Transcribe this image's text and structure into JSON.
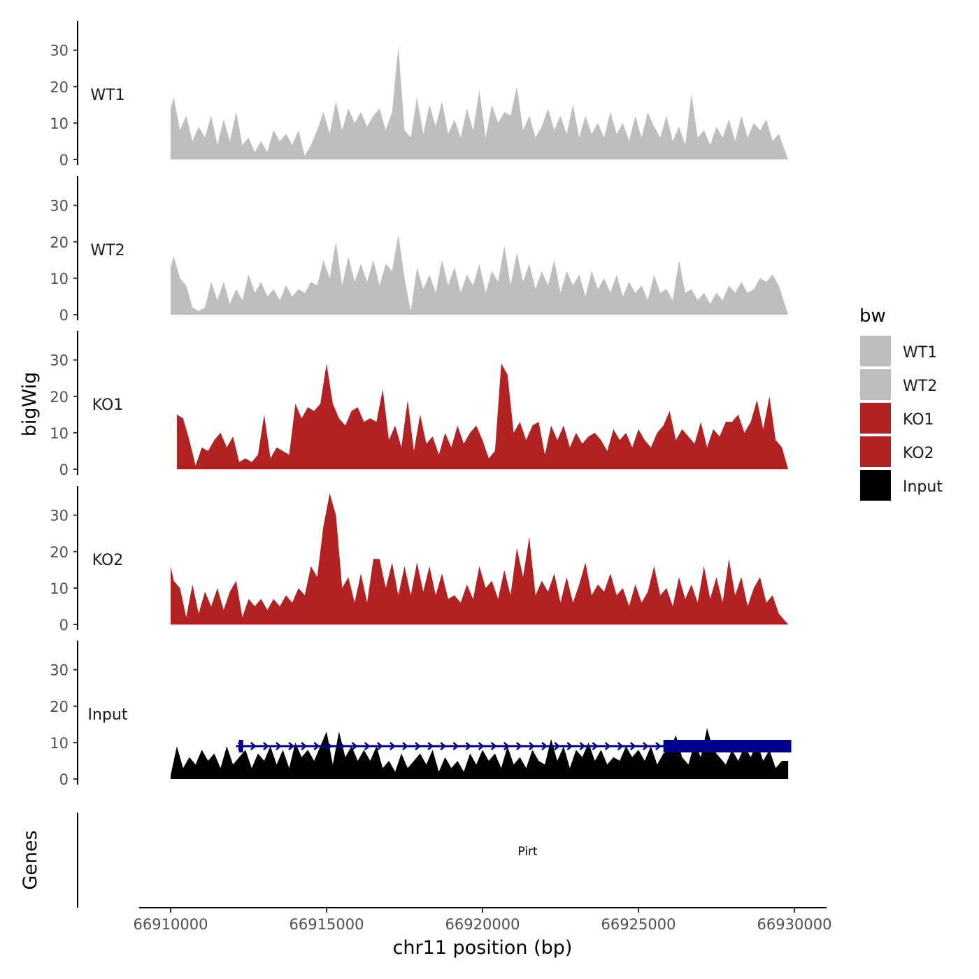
{
  "chart_data": {
    "type": "area",
    "title": "",
    "ylabel": "bigWig",
    "xlabel": "chr11 position (bp)",
    "xlim": [
      66910000,
      66930000
    ],
    "ylim": [
      0,
      37
    ],
    "x_ticks": [
      66910000,
      66915000,
      66920000,
      66925000,
      66930000
    ],
    "x_tick_labels": [
      "66910000",
      "66915000",
      "66920000",
      "66925000",
      "66930000"
    ],
    "y_ticks": [
      0,
      10,
      20,
      30
    ],
    "y_tick_labels": [
      "0",
      "10",
      "20",
      "30"
    ],
    "legend": {
      "title": "bw",
      "position": "right",
      "entries": [
        {
          "label": "WT1",
          "color": "#bebebe"
        },
        {
          "label": "WT2",
          "color": "#bebebe"
        },
        {
          "label": "KO1",
          "color": "#b22222"
        },
        {
          "label": "KO2",
          "color": "#b22222"
        },
        {
          "label": "Input",
          "color": "#000000"
        }
      ]
    },
    "series": [
      {
        "name": "WT1",
        "color": "#bebebe",
        "x": [
          66910000,
          66910100,
          66910300,
          66910500,
          66910700,
          66910900,
          66911100,
          66911300,
          66911500,
          66911700,
          66911900,
          66912100,
          66912300,
          66912500,
          66912700,
          66912900,
          66913100,
          66913300,
          66913500,
          66913700,
          66913900,
          66914100,
          66914300,
          66914500,
          66914700,
          66914900,
          66915100,
          66915300,
          66915500,
          66915700,
          66915900,
          66916100,
          66916300,
          66916500,
          66916700,
          66916900,
          66917100,
          66917300,
          66917500,
          66917700,
          66917900,
          66918100,
          66918300,
          66918500,
          66918700,
          66918900,
          66919100,
          66919300,
          66919500,
          66919700,
          66919900,
          66920100,
          66920300,
          66920500,
          66920700,
          66920900,
          66921100,
          66921300,
          66921500,
          66921700,
          66921900,
          66922100,
          66922300,
          66922500,
          66922700,
          66922900,
          66923100,
          66923300,
          66923500,
          66923700,
          66923900,
          66924100,
          66924300,
          66924500,
          66924700,
          66924900,
          66925100,
          66925300,
          66925500,
          66925700,
          66925900,
          66926100,
          66926300,
          66926500,
          66926700,
          66926900,
          66927100,
          66927300,
          66927500,
          66927700,
          66927900,
          66928100,
          66928300,
          66928500,
          66928700,
          66928900,
          66929100,
          66929300,
          66929500,
          66929800
        ],
        "values": [
          14,
          17,
          8,
          12,
          5,
          9,
          6,
          12,
          4,
          11,
          5,
          13,
          4,
          6,
          2,
          5,
          2,
          8,
          5,
          7,
          4,
          8,
          1,
          4,
          8,
          13,
          7,
          16,
          8,
          14,
          10,
          13,
          9,
          12,
          14,
          8,
          13,
          31,
          8,
          6,
          17,
          7,
          15,
          9,
          16,
          7,
          11,
          6,
          14,
          8,
          19,
          6,
          15,
          10,
          13,
          12,
          20,
          8,
          12,
          6,
          9,
          14,
          8,
          12,
          7,
          15,
          6,
          12,
          7,
          10,
          6,
          13,
          7,
          10,
          5,
          12,
          6,
          13,
          9,
          6,
          12,
          5,
          9,
          4,
          18,
          6,
          8,
          4,
          9,
          6,
          11,
          5,
          12,
          6,
          10,
          8,
          11,
          5,
          7,
          0
        ]
      },
      {
        "name": "WT2",
        "color": "#bebebe",
        "x": [
          66910000,
          66910100,
          66910300,
          66910500,
          66910700,
          66910900,
          66911100,
          66911300,
          66911500,
          66911700,
          66911900,
          66912100,
          66912300,
          66912500,
          66912700,
          66912900,
          66913100,
          66913300,
          66913500,
          66913700,
          66913900,
          66914100,
          66914300,
          66914500,
          66914700,
          66914900,
          66915100,
          66915300,
          66915500,
          66915700,
          66915900,
          66916100,
          66916300,
          66916500,
          66916700,
          66916900,
          66917100,
          66917300,
          66917500,
          66917700,
          66917900,
          66918100,
          66918300,
          66918500,
          66918700,
          66918900,
          66919100,
          66919300,
          66919500,
          66919700,
          66919900,
          66920100,
          66920300,
          66920500,
          66920700,
          66920900,
          66921100,
          66921300,
          66921500,
          66921700,
          66921900,
          66922100,
          66922300,
          66922500,
          66922700,
          66922900,
          66923100,
          66923300,
          66923500,
          66923700,
          66923900,
          66924100,
          66924300,
          66924500,
          66924700,
          66924900,
          66925100,
          66925300,
          66925500,
          66925700,
          66925900,
          66926100,
          66926300,
          66926500,
          66926700,
          66926900,
          66927100,
          66927300,
          66927500,
          66927700,
          66927900,
          66928100,
          66928300,
          66928500,
          66928700,
          66928900,
          66929100,
          66929300,
          66929500,
          66929800
        ],
        "values": [
          13,
          16,
          10,
          8,
          2,
          1,
          2,
          9,
          4,
          9,
          3,
          7,
          4,
          11,
          6,
          9,
          5,
          7,
          4,
          8,
          5,
          7,
          6,
          9,
          8,
          15,
          10,
          20,
          8,
          16,
          9,
          14,
          9,
          15,
          8,
          14,
          12,
          22,
          10,
          1,
          13,
          7,
          11,
          6,
          15,
          8,
          13,
          6,
          11,
          8,
          14,
          6,
          12,
          9,
          19,
          8,
          17,
          9,
          14,
          7,
          12,
          8,
          15,
          6,
          12,
          8,
          11,
          5,
          12,
          7,
          10,
          6,
          11,
          5,
          9,
          6,
          8,
          4,
          11,
          6,
          7,
          4,
          15,
          6,
          7,
          4,
          6,
          3,
          6,
          4,
          8,
          6,
          9,
          6,
          7,
          10,
          9,
          11,
          8,
          0
        ]
      },
      {
        "name": "KO1",
        "color": "#b22222",
        "x": [
          66910200,
          66910400,
          66910600,
          66910800,
          66911000,
          66911200,
          66911400,
          66911600,
          66911800,
          66912000,
          66912200,
          66912400,
          66912600,
          66912800,
          66913000,
          66913200,
          66913400,
          66913600,
          66913800,
          66914000,
          66914200,
          66914400,
          66914600,
          66914800,
          66915000,
          66915200,
          66915400,
          66915600,
          66915800,
          66916000,
          66916200,
          66916400,
          66916600,
          66916800,
          66917000,
          66917200,
          66917400,
          66917600,
          66917800,
          66918000,
          66918200,
          66918400,
          66918600,
          66918800,
          66919000,
          66919200,
          66919400,
          66919600,
          66919800,
          66920000,
          66920200,
          66920400,
          66920600,
          66920800,
          66921000,
          66921200,
          66921400,
          66921600,
          66921800,
          66922000,
          66922200,
          66922400,
          66922600,
          66922800,
          66923000,
          66923200,
          66923400,
          66923600,
          66923800,
          66924000,
          66924200,
          66924400,
          66924600,
          66924800,
          66925000,
          66925200,
          66925400,
          66925600,
          66925800,
          66926000,
          66926200,
          66926400,
          66926600,
          66926800,
          66927000,
          66927200,
          66927400,
          66927600,
          66927800,
          66928000,
          66928200,
          66928400,
          66928600,
          66928800,
          66929000,
          66929200,
          66929400,
          66929600,
          66929800
        ],
        "values": [
          15,
          14,
          8,
          1,
          6,
          5,
          8,
          10,
          6,
          9,
          2,
          3,
          2,
          4,
          15,
          3,
          6,
          5,
          4,
          18,
          14,
          17,
          16,
          18,
          29,
          18,
          14,
          12,
          16,
          17,
          13,
          14,
          13,
          22,
          8,
          12,
          6,
          19,
          5,
          15,
          7,
          9,
          4,
          10,
          6,
          12,
          7,
          10,
          12,
          8,
          3,
          5,
          29,
          26,
          10,
          13,
          8,
          12,
          13,
          4,
          12,
          8,
          12,
          6,
          10,
          7,
          9,
          10,
          8,
          5,
          11,
          8,
          10,
          6,
          11,
          8,
          6,
          10,
          12,
          16,
          8,
          11,
          9,
          7,
          13,
          6,
          11,
          9,
          13,
          13,
          15,
          10,
          13,
          19,
          11,
          20,
          8,
          6,
          0
        ]
      },
      {
        "name": "KO2",
        "color": "#b22222",
        "x": [
          66910000,
          66910100,
          66910300,
          66910500,
          66910700,
          66910900,
          66911100,
          66911300,
          66911500,
          66911700,
          66911900,
          66912100,
          66912300,
          66912500,
          66912700,
          66912900,
          66913100,
          66913300,
          66913500,
          66913700,
          66913900,
          66914100,
          66914300,
          66914500,
          66914700,
          66914900,
          66915100,
          66915300,
          66915500,
          66915700,
          66915900,
          66916100,
          66916300,
          66916500,
          66916700,
          66916900,
          66917100,
          66917300,
          66917500,
          66917700,
          66917900,
          66918100,
          66918300,
          66918500,
          66918700,
          66918900,
          66919100,
          66919300,
          66919500,
          66919700,
          66919900,
          66920100,
          66920300,
          66920500,
          66920700,
          66920900,
          66921100,
          66921300,
          66921500,
          66921700,
          66921900,
          66922100,
          66922300,
          66922500,
          66922700,
          66922900,
          66923100,
          66923300,
          66923500,
          66923700,
          66923900,
          66924100,
          66924300,
          66924500,
          66924700,
          66924900,
          66925100,
          66925300,
          66925500,
          66925700,
          66925900,
          66926100,
          66926300,
          66926500,
          66926700,
          66926900,
          66927100,
          66927300,
          66927500,
          66927700,
          66927900,
          66928100,
          66928300,
          66928500,
          66928700,
          66928900,
          66929100,
          66929300,
          66929500,
          66929800
        ],
        "values": [
          16,
          12,
          10,
          2,
          11,
          3,
          9,
          5,
          10,
          4,
          9,
          12,
          2,
          7,
          5,
          7,
          4,
          7,
          5,
          8,
          6,
          10,
          8,
          16,
          13,
          27,
          36,
          30,
          10,
          13,
          6,
          14,
          6,
          18,
          18,
          10,
          17,
          8,
          16,
          8,
          17,
          9,
          16,
          8,
          14,
          7,
          8,
          6,
          11,
          7,
          16,
          10,
          12,
          7,
          15,
          8,
          21,
          13,
          24,
          8,
          12,
          9,
          14,
          6,
          13,
          6,
          11,
          17,
          8,
          11,
          9,
          14,
          8,
          10,
          5,
          11,
          6,
          9,
          16,
          8,
          10,
          5,
          13,
          7,
          11,
          6,
          16,
          7,
          13,
          6,
          18,
          8,
          13,
          5,
          10,
          13,
          6,
          8,
          3,
          0
        ]
      },
      {
        "name": "Input",
        "color": "#000000",
        "x": [
          66910000,
          66910200,
          66910400,
          66910600,
          66910800,
          66911000,
          66911200,
          66911400,
          66911600,
          66911800,
          66912000,
          66912200,
          66912400,
          66912600,
          66912800,
          66913000,
          66913200,
          66913400,
          66913600,
          66913800,
          66914000,
          66914200,
          66914400,
          66914600,
          66914800,
          66915000,
          66915200,
          66915400,
          66915600,
          66915800,
          66916000,
          66916200,
          66916400,
          66916600,
          66916800,
          66917000,
          66917200,
          66917400,
          66917600,
          66917800,
          66918000,
          66918200,
          66918400,
          66918600,
          66918800,
          66919000,
          66919200,
          66919400,
          66919600,
          66919800,
          66920000,
          66920200,
          66920400,
          66920600,
          66920800,
          66921000,
          66921200,
          66921400,
          66921600,
          66921800,
          66922000,
          66922200,
          66922400,
          66922600,
          66922800,
          66923000,
          66923200,
          66923400,
          66923600,
          66923800,
          66924000,
          66924200,
          66924400,
          66924600,
          66924800,
          66925000,
          66925200,
          66925400,
          66925600,
          66925800,
          66926000,
          66926200,
          66926400,
          66926600,
          66926800,
          66927000,
          66927200,
          66927400,
          66927600,
          66927800,
          66928000,
          66928200,
          66928400,
          66928600,
          66928800,
          66929000,
          66929200,
          66929400,
          66929600,
          66929800
        ],
        "values": [
          1,
          9,
          3,
          6,
          4,
          8,
          5,
          7,
          3,
          9,
          4,
          6,
          8,
          3,
          7,
          5,
          9,
          4,
          8,
          3,
          10,
          6,
          8,
          5,
          9,
          13,
          4,
          13,
          6,
          9,
          5,
          8,
          5,
          9,
          3,
          5,
          2,
          7,
          3,
          5,
          7,
          4,
          8,
          2,
          6,
          3,
          5,
          2,
          7,
          4,
          8,
          5,
          7,
          3,
          9,
          4,
          6,
          3,
          8,
          5,
          4,
          11,
          5,
          9,
          3,
          8,
          6,
          10,
          5,
          8,
          4,
          6,
          5,
          9,
          6,
          8,
          5,
          9,
          4,
          7,
          8,
          12,
          6,
          4,
          10,
          6,
          14,
          8,
          6,
          4,
          8,
          5,
          9,
          6,
          10,
          5,
          8,
          3,
          5,
          5
        ]
      }
    ],
    "gene_track": {
      "label": "Genes",
      "genes": [
        {
          "name": "Pirt",
          "start": 66912100,
          "end": 66929900,
          "strand": "+",
          "thick_start": 66925800,
          "thick_end": 66929900,
          "color": "#00008b"
        }
      ]
    }
  }
}
